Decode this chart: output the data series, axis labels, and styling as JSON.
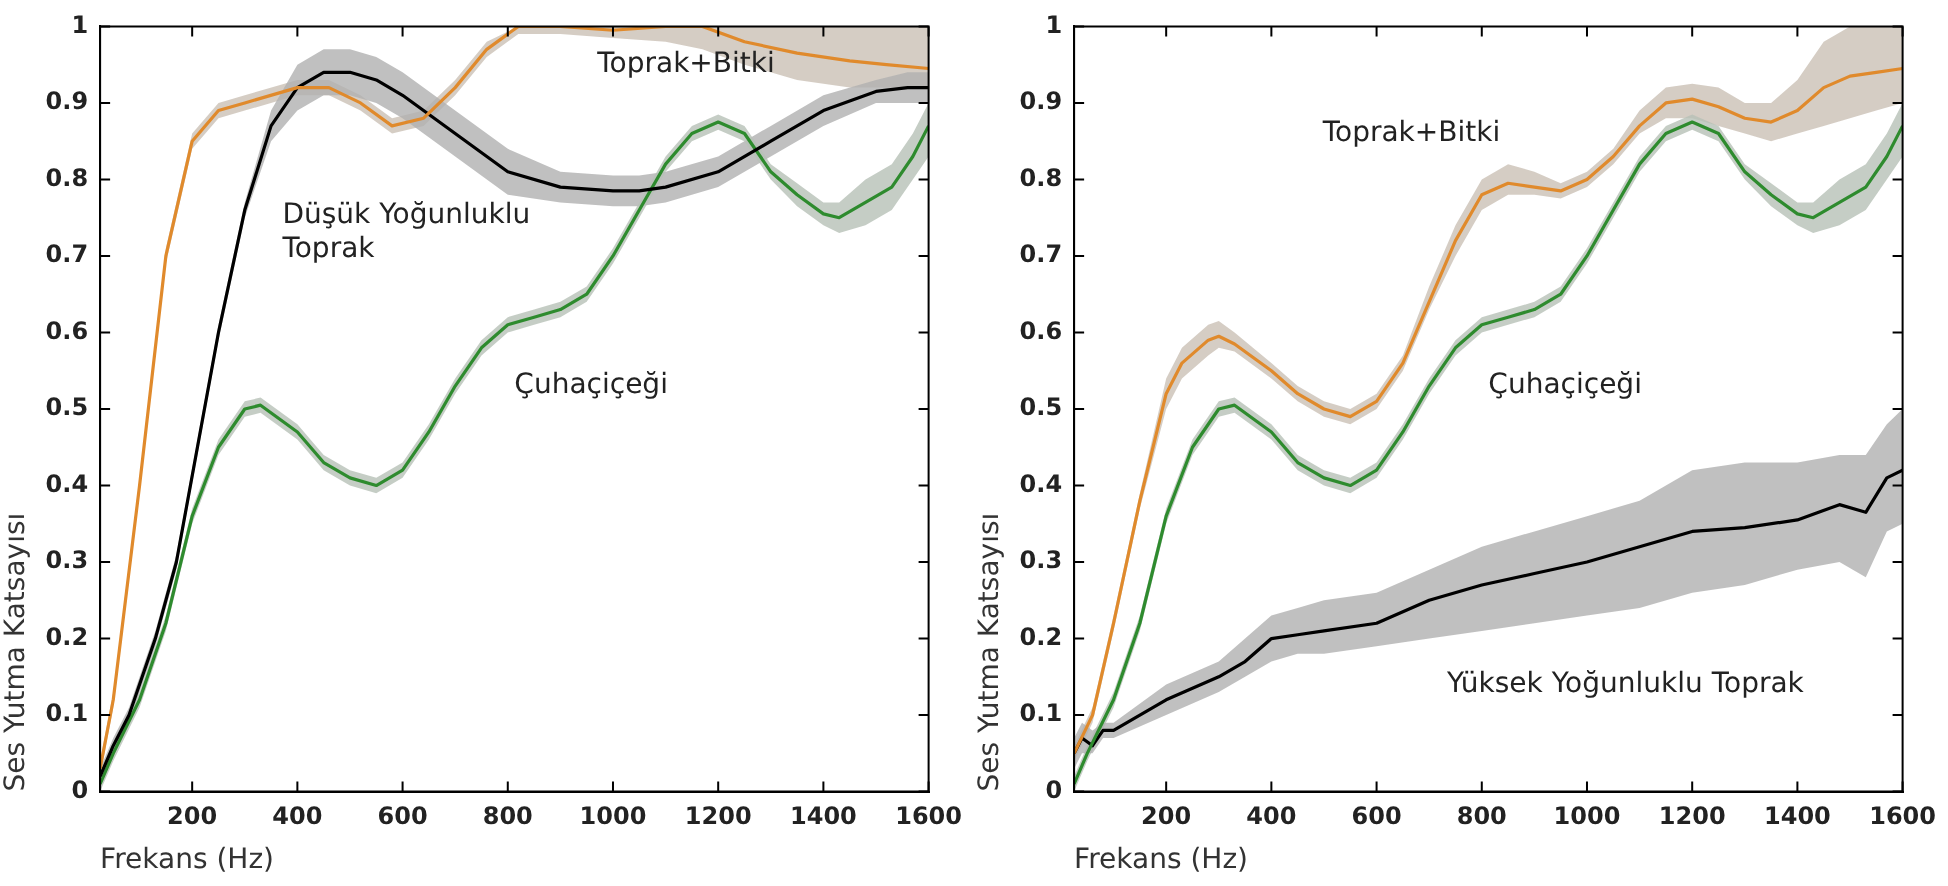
{
  "chart_data": [
    {
      "type": "line",
      "xlabel": "Frekans (Hz)",
      "ylabel": "Ses Yutma Katsayısı",
      "xlim": [
        25,
        1600
      ],
      "ylim": [
        0,
        1
      ],
      "xticks": [
        200,
        400,
        600,
        800,
        1000,
        1200,
        1400,
        1600
      ],
      "yticks": [
        0,
        0.1,
        0.2,
        0.3,
        0.4,
        0.5,
        0.6,
        0.7,
        0.8,
        0.9,
        1
      ],
      "grid": false,
      "legend": false,
      "marker": "none",
      "line_style": "solid",
      "annotations": [
        "Toprak+Bitki",
        "Düşük Yoğunluklu\nToprak",
        "Çuhaçiçeği"
      ],
      "series": [
        {
          "color": "#e08a2c",
          "x": [
            25,
            50,
            100,
            150,
            200,
            250,
            300,
            400,
            460,
            520,
            580,
            640,
            700,
            760,
            820,
            900,
            1000,
            1100,
            1170,
            1250,
            1350,
            1450,
            1520,
            1600
          ],
          "values": [
            0.03,
            0.12,
            0.4,
            0.7,
            0.85,
            0.89,
            0.9,
            0.92,
            0.92,
            0.9,
            0.87,
            0.88,
            0.92,
            0.97,
            1,
            1,
            0.995,
            1,
            1,
            0.98,
            0.965,
            0.955,
            0.95,
            0.945
          ],
          "lower": [
            0.02,
            0.11,
            0.39,
            0.69,
            0.84,
            0.88,
            0.89,
            0.91,
            0.91,
            0.89,
            0.86,
            0.87,
            0.91,
            0.96,
            0.99,
            0.99,
            0.985,
            0.98,
            0.97,
            0.95,
            0.93,
            0.92,
            0.92,
            0.92
          ],
          "upper": [
            0.04,
            0.13,
            0.41,
            0.71,
            0.86,
            0.9,
            0.91,
            0.93,
            0.93,
            0.91,
            0.88,
            0.89,
            0.93,
            0.98,
            1,
            1,
            1,
            1,
            1,
            1,
            1,
            1,
            1,
            1
          ]
        },
        {
          "color": "#000000",
          "x": [
            25,
            50,
            80,
            130,
            170,
            210,
            250,
            300,
            350,
            400,
            450,
            500,
            550,
            600,
            700,
            800,
            900,
            1000,
            1050,
            1100,
            1200,
            1300,
            1400,
            1500,
            1560,
            1600
          ],
          "values": [
            0.02,
            0.06,
            0.1,
            0.2,
            0.3,
            0.45,
            0.6,
            0.76,
            0.87,
            0.92,
            0.94,
            0.94,
            0.93,
            0.91,
            0.86,
            0.81,
            0.79,
            0.785,
            0.785,
            0.79,
            0.81,
            0.85,
            0.89,
            0.915,
            0.92,
            0.92
          ],
          "lower": [
            0.01,
            0.05,
            0.09,
            0.19,
            0.29,
            0.44,
            0.59,
            0.75,
            0.85,
            0.89,
            0.91,
            0.91,
            0.9,
            0.88,
            0.83,
            0.78,
            0.77,
            0.765,
            0.765,
            0.77,
            0.79,
            0.83,
            0.87,
            0.9,
            0.9,
            0.9
          ],
          "upper": [
            0.03,
            0.07,
            0.11,
            0.21,
            0.31,
            0.46,
            0.61,
            0.77,
            0.89,
            0.95,
            0.97,
            0.97,
            0.96,
            0.94,
            0.89,
            0.84,
            0.81,
            0.805,
            0.805,
            0.81,
            0.83,
            0.87,
            0.91,
            0.93,
            0.94,
            0.94
          ]
        },
        {
          "color": "#2e8b2e",
          "x": [
            25,
            50,
            100,
            150,
            200,
            250,
            300,
            330,
            400,
            450,
            500,
            550,
            600,
            650,
            700,
            750,
            800,
            850,
            900,
            950,
            1000,
            1050,
            1100,
            1150,
            1200,
            1250,
            1300,
            1350,
            1400,
            1430,
            1480,
            1530,
            1570,
            1600
          ],
          "values": [
            0.01,
            0.05,
            0.12,
            0.22,
            0.36,
            0.45,
            0.5,
            0.505,
            0.47,
            0.43,
            0.41,
            0.4,
            0.42,
            0.47,
            0.53,
            0.58,
            0.61,
            0.62,
            0.63,
            0.65,
            0.7,
            0.76,
            0.82,
            0.86,
            0.875,
            0.86,
            0.81,
            0.78,
            0.755,
            0.75,
            0.77,
            0.79,
            0.83,
            0.87
          ],
          "lower": [
            0,
            0.04,
            0.11,
            0.21,
            0.35,
            0.44,
            0.49,
            0.495,
            0.46,
            0.42,
            0.4,
            0.39,
            0.41,
            0.46,
            0.52,
            0.57,
            0.6,
            0.61,
            0.62,
            0.64,
            0.69,
            0.75,
            0.81,
            0.85,
            0.865,
            0.85,
            0.8,
            0.765,
            0.74,
            0.73,
            0.74,
            0.76,
            0.8,
            0.83
          ],
          "upper": [
            0.02,
            0.06,
            0.13,
            0.23,
            0.37,
            0.46,
            0.51,
            0.515,
            0.48,
            0.44,
            0.42,
            0.41,
            0.43,
            0.48,
            0.54,
            0.59,
            0.62,
            0.63,
            0.64,
            0.66,
            0.71,
            0.77,
            0.83,
            0.87,
            0.885,
            0.87,
            0.82,
            0.795,
            0.77,
            0.77,
            0.8,
            0.82,
            0.86,
            0.9
          ]
        }
      ]
    },
    {
      "type": "line",
      "xlabel": "Frekans (Hz)",
      "ylabel": "Ses Yutma Katsayısı",
      "xlim": [
        25,
        1600
      ],
      "ylim": [
        0,
        1
      ],
      "xticks": [
        200,
        400,
        600,
        800,
        1000,
        1200,
        1400,
        1600
      ],
      "yticks": [
        0,
        0.1,
        0.2,
        0.3,
        0.4,
        0.5,
        0.6,
        0.7,
        0.8,
        0.9,
        1
      ],
      "grid": false,
      "legend": false,
      "marker": "none",
      "line_style": "solid",
      "annotations": [
        "Toprak+Bitki",
        "Çuhaçiçeği",
        "Yüksek Yoğunluklu Toprak"
      ],
      "series": [
        {
          "color": "#e08a2c",
          "x": [
            25,
            60,
            100,
            150,
            200,
            230,
            280,
            300,
            330,
            400,
            450,
            500,
            550,
            600,
            650,
            700,
            750,
            800,
            850,
            900,
            950,
            1000,
            1050,
            1100,
            1150,
            1200,
            1250,
            1300,
            1350,
            1400,
            1450,
            1500,
            1550,
            1600
          ],
          "values": [
            0.05,
            0.1,
            0.22,
            0.38,
            0.52,
            0.56,
            0.59,
            0.595,
            0.585,
            0.55,
            0.52,
            0.5,
            0.49,
            0.51,
            0.56,
            0.64,
            0.72,
            0.78,
            0.795,
            0.79,
            0.785,
            0.8,
            0.83,
            0.87,
            0.9,
            0.905,
            0.895,
            0.88,
            0.875,
            0.89,
            0.92,
            0.935,
            0.94,
            0.945
          ],
          "lower": [
            0.04,
            0.09,
            0.21,
            0.37,
            0.5,
            0.54,
            0.57,
            0.58,
            0.575,
            0.54,
            0.51,
            0.49,
            0.48,
            0.5,
            0.55,
            0.63,
            0.7,
            0.76,
            0.78,
            0.78,
            0.775,
            0.79,
            0.82,
            0.86,
            0.88,
            0.88,
            0.87,
            0.86,
            0.85,
            0.86,
            0.87,
            0.88,
            0.89,
            0.9
          ],
          "upper": [
            0.06,
            0.11,
            0.23,
            0.39,
            0.54,
            0.58,
            0.61,
            0.615,
            0.6,
            0.56,
            0.53,
            0.51,
            0.5,
            0.52,
            0.57,
            0.66,
            0.74,
            0.8,
            0.82,
            0.81,
            0.795,
            0.81,
            0.84,
            0.89,
            0.92,
            0.925,
            0.92,
            0.9,
            0.9,
            0.93,
            0.98,
            1,
            1,
            1
          ]
        },
        {
          "color": "#2e8b2e",
          "x": [
            25,
            50,
            100,
            150,
            200,
            250,
            300,
            330,
            400,
            450,
            500,
            550,
            600,
            650,
            700,
            750,
            800,
            850,
            900,
            950,
            1000,
            1050,
            1100,
            1150,
            1200,
            1250,
            1300,
            1350,
            1400,
            1430,
            1480,
            1530,
            1570,
            1600
          ],
          "values": [
            0.01,
            0.05,
            0.12,
            0.22,
            0.36,
            0.45,
            0.5,
            0.505,
            0.47,
            0.43,
            0.41,
            0.4,
            0.42,
            0.47,
            0.53,
            0.58,
            0.61,
            0.62,
            0.63,
            0.65,
            0.7,
            0.76,
            0.82,
            0.86,
            0.875,
            0.86,
            0.81,
            0.78,
            0.755,
            0.75,
            0.77,
            0.79,
            0.83,
            0.87
          ],
          "lower": [
            0,
            0.04,
            0.11,
            0.21,
            0.35,
            0.44,
            0.49,
            0.495,
            0.46,
            0.42,
            0.4,
            0.39,
            0.41,
            0.46,
            0.52,
            0.57,
            0.6,
            0.61,
            0.62,
            0.64,
            0.69,
            0.75,
            0.81,
            0.85,
            0.865,
            0.85,
            0.8,
            0.765,
            0.74,
            0.73,
            0.74,
            0.76,
            0.8,
            0.83
          ],
          "upper": [
            0.02,
            0.06,
            0.13,
            0.23,
            0.37,
            0.46,
            0.51,
            0.515,
            0.48,
            0.44,
            0.42,
            0.41,
            0.43,
            0.48,
            0.54,
            0.59,
            0.62,
            0.63,
            0.64,
            0.66,
            0.71,
            0.77,
            0.83,
            0.87,
            0.885,
            0.87,
            0.82,
            0.795,
            0.77,
            0.77,
            0.8,
            0.82,
            0.86,
            0.9
          ]
        },
        {
          "color": "#000000",
          "x": [
            25,
            40,
            60,
            80,
            100,
            200,
            300,
            350,
            400,
            450,
            500,
            600,
            700,
            800,
            900,
            1000,
            1100,
            1200,
            1300,
            1400,
            1480,
            1530,
            1570,
            1600
          ],
          "values": [
            0.05,
            0.07,
            0.06,
            0.08,
            0.08,
            0.12,
            0.15,
            0.17,
            0.2,
            0.205,
            0.21,
            0.22,
            0.25,
            0.27,
            0.285,
            0.3,
            0.32,
            0.34,
            0.345,
            0.355,
            0.375,
            0.365,
            0.41,
            0.42
          ],
          "lower": [
            0.03,
            0.05,
            0.05,
            0.07,
            0.07,
            0.1,
            0.13,
            0.15,
            0.17,
            0.18,
            0.18,
            0.19,
            0.2,
            0.21,
            0.22,
            0.23,
            0.24,
            0.26,
            0.27,
            0.29,
            0.3,
            0.28,
            0.34,
            0.35
          ],
          "upper": [
            0.07,
            0.09,
            0.08,
            0.09,
            0.09,
            0.14,
            0.17,
            0.2,
            0.23,
            0.24,
            0.25,
            0.26,
            0.29,
            0.32,
            0.34,
            0.36,
            0.38,
            0.42,
            0.43,
            0.43,
            0.44,
            0.44,
            0.48,
            0.5
          ]
        }
      ]
    }
  ]
}
